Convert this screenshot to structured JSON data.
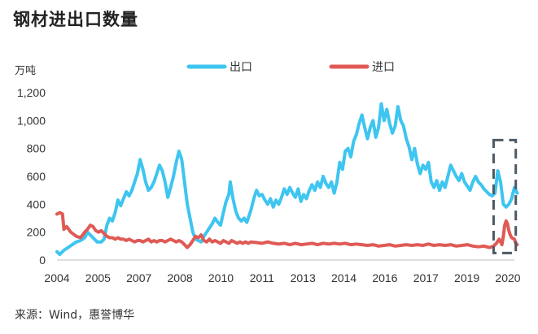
{
  "title": "钢材进出口数量",
  "unit": "万吨",
  "source": "来源：Wind，惠誉博华",
  "chart_data": {
    "type": "line",
    "title": "钢材进出口数量",
    "ylabel": "万吨",
    "ylim": [
      0,
      1200
    ],
    "yticks": [
      "0",
      "200",
      "400",
      "600",
      "800",
      "1,000",
      "1,200"
    ],
    "xticks": [
      "2004",
      "2005",
      "2007",
      "2008",
      "2010",
      "2011",
      "2013",
      "2014",
      "2016",
      "2017",
      "2019",
      "2020"
    ],
    "xrange": [
      2004.0,
      2020.5
    ],
    "legend_position": "top",
    "highlight_box": {
      "x_from": 2019.75,
      "x_to": 2020.55,
      "y_from": 50,
      "y_to": 860
    },
    "series": [
      {
        "name": "出口",
        "color": "#3ec5f0",
        "points": [
          [
            2004.0,
            60
          ],
          [
            2004.1,
            40
          ],
          [
            2004.25,
            70
          ],
          [
            2004.4,
            90
          ],
          [
            2004.55,
            110
          ],
          [
            2004.7,
            130
          ],
          [
            2004.85,
            140
          ],
          [
            2005.0,
            160
          ],
          [
            2005.1,
            200
          ],
          [
            2005.2,
            180
          ],
          [
            2005.3,
            160
          ],
          [
            2005.45,
            130
          ],
          [
            2005.6,
            130
          ],
          [
            2005.7,
            150
          ],
          [
            2005.8,
            250
          ],
          [
            2005.9,
            300
          ],
          [
            2006.0,
            280
          ],
          [
            2006.1,
            340
          ],
          [
            2006.2,
            430
          ],
          [
            2006.3,
            390
          ],
          [
            2006.4,
            440
          ],
          [
            2006.5,
            490
          ],
          [
            2006.6,
            460
          ],
          [
            2006.7,
            500
          ],
          [
            2006.8,
            560
          ],
          [
            2006.9,
            620
          ],
          [
            2007.0,
            720
          ],
          [
            2007.1,
            650
          ],
          [
            2007.2,
            560
          ],
          [
            2007.3,
            500
          ],
          [
            2007.4,
            520
          ],
          [
            2007.5,
            560
          ],
          [
            2007.6,
            620
          ],
          [
            2007.7,
            680
          ],
          [
            2007.8,
            640
          ],
          [
            2007.9,
            560
          ],
          [
            2008.0,
            450
          ],
          [
            2008.1,
            520
          ],
          [
            2008.2,
            600
          ],
          [
            2008.3,
            700
          ],
          [
            2008.4,
            780
          ],
          [
            2008.5,
            720
          ],
          [
            2008.6,
            560
          ],
          [
            2008.7,
            400
          ],
          [
            2008.8,
            300
          ],
          [
            2008.9,
            200
          ],
          [
            2009.0,
            150
          ],
          [
            2009.1,
            140
          ],
          [
            2009.2,
            130
          ],
          [
            2009.3,
            170
          ],
          [
            2009.4,
            200
          ],
          [
            2009.5,
            230
          ],
          [
            2009.6,
            260
          ],
          [
            2009.7,
            300
          ],
          [
            2009.8,
            270
          ],
          [
            2009.9,
            250
          ],
          [
            2010.0,
            340
          ],
          [
            2010.1,
            420
          ],
          [
            2010.2,
            470
          ],
          [
            2010.25,
            560
          ],
          [
            2010.35,
            440
          ],
          [
            2010.45,
            350
          ],
          [
            2010.55,
            300
          ],
          [
            2010.65,
            280
          ],
          [
            2010.75,
            300
          ],
          [
            2010.85,
            270
          ],
          [
            2011.0,
            360
          ],
          [
            2011.1,
            440
          ],
          [
            2011.2,
            500
          ],
          [
            2011.3,
            460
          ],
          [
            2011.4,
            470
          ],
          [
            2011.5,
            430
          ],
          [
            2011.6,
            400
          ],
          [
            2011.7,
            440
          ],
          [
            2011.8,
            380
          ],
          [
            2011.9,
            430
          ],
          [
            2012.0,
            400
          ],
          [
            2012.1,
            450
          ],
          [
            2012.2,
            510
          ],
          [
            2012.3,
            470
          ],
          [
            2012.4,
            520
          ],
          [
            2012.5,
            480
          ],
          [
            2012.6,
            450
          ],
          [
            2012.7,
            510
          ],
          [
            2012.8,
            420
          ],
          [
            2012.9,
            470
          ],
          [
            2013.0,
            440
          ],
          [
            2013.1,
            500
          ],
          [
            2013.2,
            540
          ],
          [
            2013.3,
            500
          ],
          [
            2013.4,
            560
          ],
          [
            2013.5,
            520
          ],
          [
            2013.6,
            600
          ],
          [
            2013.7,
            550
          ],
          [
            2013.8,
            520
          ],
          [
            2013.9,
            560
          ],
          [
            2014.0,
            480
          ],
          [
            2014.1,
            560
          ],
          [
            2014.2,
            700
          ],
          [
            2014.3,
            650
          ],
          [
            2014.4,
            780
          ],
          [
            2014.5,
            800
          ],
          [
            2014.6,
            740
          ],
          [
            2014.7,
            850
          ],
          [
            2014.8,
            900
          ],
          [
            2014.9,
            980
          ],
          [
            2015.0,
            1040
          ],
          [
            2015.1,
            950
          ],
          [
            2015.2,
            870
          ],
          [
            2015.3,
            950
          ],
          [
            2015.4,
            1000
          ],
          [
            2015.5,
            880
          ],
          [
            2015.6,
            950
          ],
          [
            2015.7,
            1120
          ],
          [
            2015.8,
            1000
          ],
          [
            2015.9,
            1080
          ],
          [
            2016.0,
            980
          ],
          [
            2016.1,
            910
          ],
          [
            2016.2,
            960
          ],
          [
            2016.3,
            1100
          ],
          [
            2016.4,
            1000
          ],
          [
            2016.5,
            960
          ],
          [
            2016.6,
            870
          ],
          [
            2016.7,
            810
          ],
          [
            2016.8,
            720
          ],
          [
            2016.9,
            800
          ],
          [
            2017.0,
            690
          ],
          [
            2017.1,
            620
          ],
          [
            2017.2,
            680
          ],
          [
            2017.3,
            650
          ],
          [
            2017.4,
            700
          ],
          [
            2017.5,
            560
          ],
          [
            2017.6,
            520
          ],
          [
            2017.7,
            570
          ],
          [
            2017.8,
            500
          ],
          [
            2017.9,
            560
          ],
          [
            2018.0,
            520
          ],
          [
            2018.1,
            600
          ],
          [
            2018.2,
            680
          ],
          [
            2018.3,
            640
          ],
          [
            2018.4,
            600
          ],
          [
            2018.5,
            570
          ],
          [
            2018.6,
            620
          ],
          [
            2018.7,
            560
          ],
          [
            2018.8,
            530
          ],
          [
            2018.9,
            500
          ],
          [
            2019.0,
            560
          ],
          [
            2019.1,
            600
          ],
          [
            2019.2,
            560
          ],
          [
            2019.3,
            540
          ],
          [
            2019.4,
            510
          ],
          [
            2019.5,
            490
          ],
          [
            2019.6,
            470
          ],
          [
            2019.7,
            460
          ],
          [
            2019.8,
            480
          ],
          [
            2019.9,
            640
          ],
          [
            2020.0,
            560
          ],
          [
            2020.1,
            400
          ],
          [
            2020.2,
            380
          ],
          [
            2020.3,
            400
          ],
          [
            2020.4,
            440
          ],
          [
            2020.5,
            520
          ],
          [
            2020.6,
            480
          ]
        ]
      },
      {
        "name": "进口",
        "color": "#e05a55",
        "points": [
          [
            2004.0,
            330
          ],
          [
            2004.1,
            340
          ],
          [
            2004.2,
            330
          ],
          [
            2004.25,
            220
          ],
          [
            2004.35,
            240
          ],
          [
            2004.5,
            200
          ],
          [
            2004.7,
            170
          ],
          [
            2004.85,
            160
          ],
          [
            2005.0,
            200
          ],
          [
            2005.1,
            220
          ],
          [
            2005.2,
            250
          ],
          [
            2005.3,
            240
          ],
          [
            2005.4,
            210
          ],
          [
            2005.5,
            200
          ],
          [
            2005.6,
            210
          ],
          [
            2005.7,
            190
          ],
          [
            2005.8,
            170
          ],
          [
            2005.9,
            160
          ],
          [
            2006.0,
            160
          ],
          [
            2006.1,
            150
          ],
          [
            2006.2,
            160
          ],
          [
            2006.3,
            150
          ],
          [
            2006.4,
            150
          ],
          [
            2006.5,
            140
          ],
          [
            2006.6,
            150
          ],
          [
            2006.7,
            140
          ],
          [
            2006.8,
            130
          ],
          [
            2006.9,
            140
          ],
          [
            2007.0,
            140
          ],
          [
            2007.1,
            130
          ],
          [
            2007.2,
            140
          ],
          [
            2007.3,
            150
          ],
          [
            2007.4,
            130
          ],
          [
            2007.5,
            140
          ],
          [
            2007.6,
            130
          ],
          [
            2007.7,
            140
          ],
          [
            2007.8,
            140
          ],
          [
            2007.9,
            130
          ],
          [
            2008.0,
            140
          ],
          [
            2008.1,
            150
          ],
          [
            2008.2,
            140
          ],
          [
            2008.3,
            130
          ],
          [
            2008.4,
            140
          ],
          [
            2008.5,
            130
          ],
          [
            2008.6,
            110
          ],
          [
            2008.7,
            90
          ],
          [
            2008.8,
            110
          ],
          [
            2008.9,
            140
          ],
          [
            2009.0,
            170
          ],
          [
            2009.1,
            160
          ],
          [
            2009.2,
            180
          ],
          [
            2009.3,
            140
          ],
          [
            2009.4,
            130
          ],
          [
            2009.5,
            150
          ],
          [
            2009.6,
            130
          ],
          [
            2009.7,
            140
          ],
          [
            2009.8,
            130
          ],
          [
            2009.9,
            120
          ],
          [
            2010.0,
            140
          ],
          [
            2010.1,
            130
          ],
          [
            2010.2,
            120
          ],
          [
            2010.3,
            140
          ],
          [
            2010.4,
            130
          ],
          [
            2010.5,
            120
          ],
          [
            2010.6,
            130
          ],
          [
            2010.7,
            120
          ],
          [
            2010.8,
            130
          ],
          [
            2010.9,
            120
          ],
          [
            2011.0,
            130
          ],
          [
            2011.2,
            125
          ],
          [
            2011.4,
            120
          ],
          [
            2011.6,
            130
          ],
          [
            2011.8,
            120
          ],
          [
            2012.0,
            115
          ],
          [
            2012.2,
            120
          ],
          [
            2012.4,
            110
          ],
          [
            2012.6,
            120
          ],
          [
            2012.8,
            110
          ],
          [
            2013.0,
            115
          ],
          [
            2013.2,
            120
          ],
          [
            2013.4,
            110
          ],
          [
            2013.6,
            120
          ],
          [
            2013.8,
            115
          ],
          [
            2014.0,
            120
          ],
          [
            2014.2,
            115
          ],
          [
            2014.4,
            120
          ],
          [
            2014.6,
            110
          ],
          [
            2014.8,
            115
          ],
          [
            2015.0,
            110
          ],
          [
            2015.2,
            105
          ],
          [
            2015.4,
            110
          ],
          [
            2015.6,
            100
          ],
          [
            2015.8,
            105
          ],
          [
            2016.0,
            110
          ],
          [
            2016.2,
            100
          ],
          [
            2016.4,
            105
          ],
          [
            2016.6,
            110
          ],
          [
            2016.8,
            105
          ],
          [
            2017.0,
            110
          ],
          [
            2017.2,
            105
          ],
          [
            2017.4,
            115
          ],
          [
            2017.6,
            105
          ],
          [
            2017.8,
            110
          ],
          [
            2018.0,
            105
          ],
          [
            2018.2,
            110
          ],
          [
            2018.4,
            100
          ],
          [
            2018.6,
            105
          ],
          [
            2018.8,
            110
          ],
          [
            2019.0,
            100
          ],
          [
            2019.2,
            95
          ],
          [
            2019.4,
            100
          ],
          [
            2019.6,
            90
          ],
          [
            2019.75,
            100
          ],
          [
            2019.85,
            120
          ],
          [
            2019.95,
            150
          ],
          [
            2020.0,
            130
          ],
          [
            2020.05,
            110
          ],
          [
            2020.1,
            170
          ],
          [
            2020.15,
            250
          ],
          [
            2020.2,
            280
          ],
          [
            2020.25,
            260
          ],
          [
            2020.3,
            210
          ],
          [
            2020.35,
            180
          ],
          [
            2020.4,
            160
          ],
          [
            2020.5,
            150
          ],
          [
            2020.55,
            120
          ],
          [
            2020.6,
            110
          ]
        ]
      }
    ]
  }
}
